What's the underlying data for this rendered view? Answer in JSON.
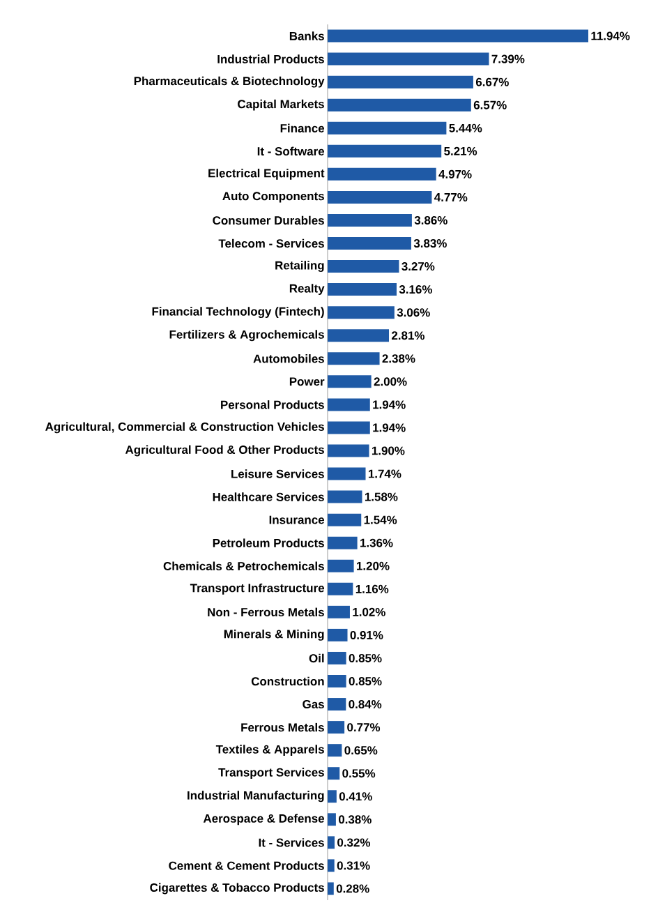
{
  "chart_data": {
    "type": "bar",
    "orientation": "horizontal",
    "color": "#1f5aa6",
    "categories": [
      "Banks",
      "Industrial Products",
      "Pharmaceuticals & Biotechnology",
      "Capital Markets",
      "Finance",
      "It - Software",
      "Electrical Equipment",
      "Auto Components",
      "Consumer Durables",
      "Telecom - Services",
      "Retailing",
      "Realty",
      "Financial Technology (Fintech)",
      "Fertilizers & Agrochemicals",
      "Automobiles",
      "Power",
      "Personal Products",
      "Agricultural, Commercial & Construction Vehicles",
      "Agricultural Food & Other Products",
      "Leisure Services",
      "Healthcare Services",
      "Insurance",
      "Petroleum Products",
      "Chemicals & Petrochemicals",
      "Transport Infrastructure",
      "Non - Ferrous Metals",
      "Minerals & Mining",
      "Oil",
      "Construction",
      "Gas",
      "Ferrous Metals",
      "Textiles & Apparels",
      "Transport Services",
      "Industrial Manufacturing",
      "Aerospace & Defense",
      "It - Services",
      "Cement & Cement Products",
      "Cigarettes & Tobacco Products"
    ],
    "values": [
      11.94,
      7.39,
      6.67,
      6.57,
      5.44,
      5.21,
      4.97,
      4.77,
      3.86,
      3.83,
      3.27,
      3.16,
      3.06,
      2.81,
      2.38,
      2.0,
      1.94,
      1.94,
      1.9,
      1.74,
      1.58,
      1.54,
      1.36,
      1.2,
      1.16,
      1.02,
      0.91,
      0.85,
      0.85,
      0.84,
      0.77,
      0.65,
      0.55,
      0.41,
      0.38,
      0.32,
      0.31,
      0.28
    ],
    "value_labels": [
      "11.94%",
      "7.39%",
      "6.67%",
      "6.57%",
      "5.44%",
      "5.21%",
      "4.97%",
      "4.77%",
      "3.86%",
      "3.83%",
      "3.27%",
      "3.16%",
      "3.06%",
      "2.81%",
      "2.38%",
      "2.00%",
      "1.94%",
      "1.94%",
      "1.90%",
      "1.74%",
      "1.58%",
      "1.54%",
      "1.36%",
      "1.20%",
      "1.16%",
      "1.02%",
      "0.91%",
      "0.85%",
      "0.85%",
      "0.84%",
      "0.77%",
      "0.65%",
      "0.55%",
      "0.41%",
      "0.38%",
      "0.32%",
      "0.31%",
      "0.28%"
    ]
  }
}
